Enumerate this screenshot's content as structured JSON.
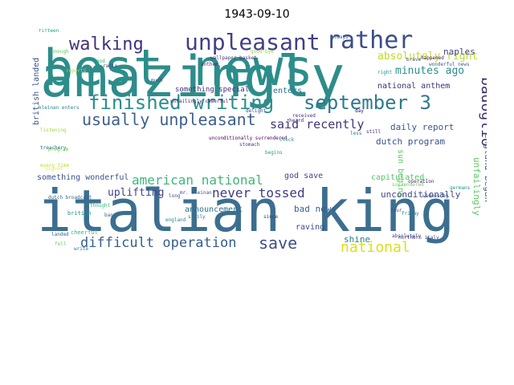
{
  "figure": {
    "title": "1943-09-10"
  },
  "words": [
    {
      "text": "amazingly",
      "color": "#2e8c8a"
    },
    {
      "text": "best news",
      "color": "#2a8e8a"
    },
    {
      "text": "italian king",
      "color": "#3c6e8f"
    },
    {
      "text": "unpleasant",
      "color": "#433f86"
    },
    {
      "text": "rather",
      "color": "#3b4d8a"
    },
    {
      "text": "finished writing",
      "color": "#2b8f89"
    },
    {
      "text": "september 3",
      "color": "#2f7a8e"
    },
    {
      "text": "usually unpleasant",
      "color": "#3d5f8e"
    },
    {
      "text": "walking",
      "color": "#42317c"
    },
    {
      "text": "badoglio",
      "color": "#3b2a6f"
    },
    {
      "text": "american national",
      "color": "#3fb67a"
    },
    {
      "text": "difficult operation",
      "color": "#355e8d"
    },
    {
      "text": "save",
      "color": "#3d4f8b"
    },
    {
      "text": "national",
      "color": "#d9e11a"
    },
    {
      "text": "never tossed",
      "color": "#3e3b84"
    },
    {
      "text": "said recently",
      "color": "#433479"
    },
    {
      "text": "absolutely right",
      "color": "#c0da2a"
    },
    {
      "text": "minutes ago",
      "color": "#2a8e8c"
    },
    {
      "text": "national anthem",
      "color": "#3b3276"
    },
    {
      "text": "daily report",
      "color": "#375a8c"
    },
    {
      "text": "dutch program",
      "color": "#3a528b"
    },
    {
      "text": "england began",
      "color": "#36618d"
    },
    {
      "text": "unfailingly",
      "color": "#5ac864"
    },
    {
      "text": "naples",
      "color": "#414487"
    },
    {
      "text": "sun begins",
      "color": "#5ec962"
    },
    {
      "text": "unconditionally",
      "color": "#3e4a89"
    },
    {
      "text": "capitulated.",
      "color": "#52c569"
    },
    {
      "text": "god save",
      "color": "#414487"
    },
    {
      "text": "bad news",
      "color": "#355f8d"
    },
    {
      "text": "raving",
      "color": "#3e4989"
    },
    {
      "text": "shine",
      "color": "#27808e"
    },
    {
      "text": "uplifting",
      "color": "#3f4788"
    },
    {
      "text": "announcement",
      "color": "#2c728e"
    },
    {
      "text": "something wonderful",
      "color": "#3b528b"
    },
    {
      "text": "something special",
      "color": "#472d7b"
    },
    {
      "text": "enters",
      "color": "#2c728e"
    },
    {
      "text": "british landed",
      "color": "#3b528b"
    },
    {
      "text": "unfailingly cheerful",
      "color": "#48186a"
    },
    {
      "text": "wallpaper basket",
      "color": "#46337f"
    },
    {
      "text": "unconditionally surrendered",
      "color": "#440154"
    },
    {
      "text": "mr. kleinan",
      "color": "#3e4989"
    },
    {
      "text": "dutch broadcast",
      "color": "#31688e"
    },
    {
      "text": "cheerful",
      "color": "#35b779"
    },
    {
      "text": "good-bye",
      "color": "#8fd744"
    },
    {
      "text": "british",
      "color": "#21918c"
    },
    {
      "text": "operation",
      "color": "#482878"
    },
    {
      "text": "northern italy",
      "color": "#414487"
    },
    {
      "text": "absolutely",
      "color": "#443983"
    },
    {
      "text": "reports",
      "color": "#b5de2b"
    },
    {
      "text": "wonderful news",
      "color": "#355f8d"
    },
    {
      "text": "fifteen",
      "color": "#1fa187"
    },
    {
      "text": "friday",
      "color": "#2a788e"
    },
    {
      "text": "surrendered",
      "color": "#6ece58"
    },
    {
      "text": "listening",
      "color": "#9fda3a"
    },
    {
      "text": "treachery",
      "color": "#31688e"
    },
    {
      "text": "kleinan enters",
      "color": "#26828e"
    },
    {
      "text": "happened",
      "color": "#471063"
    },
    {
      "text": "wednesday",
      "color": "#3b528b"
    },
    {
      "text": "always",
      "color": "#31688e"
    },
    {
      "text": "program",
      "color": "#6ece58"
    },
    {
      "text": "delight",
      "color": "#3e4989"
    },
    {
      "text": "stomach",
      "color": "#443983"
    },
    {
      "text": "germans",
      "color": "#21918c"
    },
    {
      "text": "thought",
      "color": "#35b779"
    },
    {
      "text": "england",
      "color": "#26828e"
    },
    {
      "text": "begins",
      "color": "#1f9e89"
    },
    {
      "text": "anthem",
      "color": "#482475"
    },
    {
      "text": "radio",
      "color": "#3e4989"
    },
    {
      "text": "signed",
      "color": "#fde725"
    },
    {
      "text": "received",
      "color": "#472c7a"
    },
    {
      "text": "landed",
      "color": "#31688e"
    },
    {
      "text": "every time",
      "color": "#b5de2b"
    },
    {
      "text": "write",
      "color": "#2a788e"
    },
    {
      "text": "since",
      "color": "#443983"
    },
    {
      "text": "enough",
      "color": "#5ec962"
    },
    {
      "text": "brave",
      "color": "#3b528b"
    },
    {
      "text": "clock",
      "color": "#1f9e89"
    },
    {
      "text": "heard",
      "color": "#481a6c"
    },
    {
      "text": "sicily",
      "color": "#2c728e"
    },
    {
      "text": "still",
      "color": "#482878"
    },
    {
      "text": "much",
      "color": "#414487"
    },
    {
      "text": "less",
      "color": "#26828e"
    },
    {
      "text": "long",
      "color": "#3b528b"
    },
    {
      "text": "four",
      "color": "#3e4989"
    },
    {
      "text": "fell",
      "color": "#6ece58"
    },
    {
      "text": "god",
      "color": "#35b779"
    },
    {
      "text": "day",
      "color": "#440154"
    },
    {
      "text": "bang",
      "color": "#31688e"
    },
    {
      "text": "right",
      "color": "#21918c"
    }
  ]
}
